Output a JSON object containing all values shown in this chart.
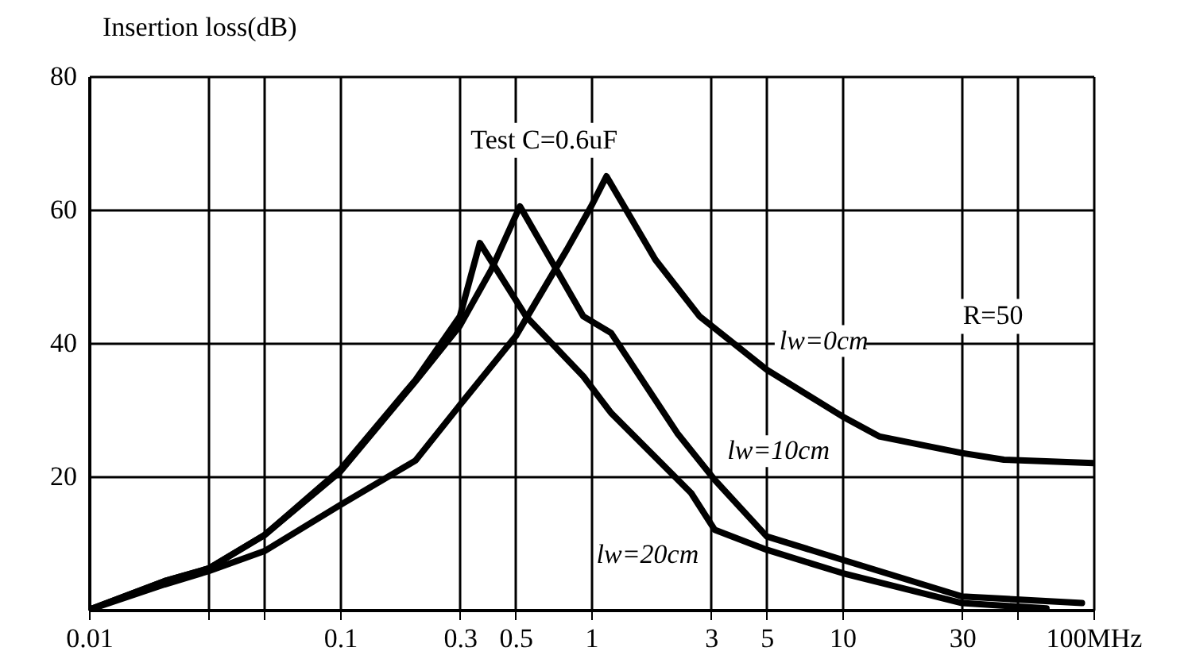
{
  "chart_data": {
    "type": "line",
    "ylabel": "Insertion loss(dB)",
    "annotations": [
      "Test C=0.6uF",
      "R=50"
    ],
    "xlim": [
      0.01,
      100
    ],
    "ylim": [
      0,
      80
    ],
    "log": "x",
    "grid": true,
    "legend": false,
    "line_style": "solid",
    "xticks": [
      0.01,
      {
        "value": 0.03,
        "label": null
      },
      {
        "value": 0.05,
        "label": null
      },
      0.1,
      0.3,
      0.5,
      1,
      3,
      5,
      10,
      30,
      {
        "value": 50,
        "label": null
      },
      {
        "value": 100,
        "label": "100MHz"
      }
    ],
    "yticks": [
      {
        "value": 0,
        "label": null
      },
      20,
      40,
      60,
      80
    ],
    "series": [
      {
        "name": "lw=0cm",
        "color": "#000000",
        "x": [
          0.01,
          0.02,
          0.03,
          0.05,
          0.1,
          0.2,
          0.3,
          0.5,
          0.8,
          1,
          1.15,
          1.8,
          2.7,
          5,
          10,
          14,
          30,
          44,
          100
        ],
        "values": [
          0,
          3.8,
          5.8,
          8.8,
          15.7,
          22.4,
          30.7,
          41,
          54,
          60.5,
          65,
          52.5,
          44,
          36,
          29,
          26,
          23.5,
          22.5,
          22
        ]
      },
      {
        "name": "lw=10cm",
        "color": "#000000",
        "x": [
          0.01,
          0.02,
          0.03,
          0.05,
          0.1,
          0.2,
          0.3,
          0.4,
          0.52,
          0.93,
          1.2,
          2.2,
          3.1,
          5,
          10,
          30,
          90
        ],
        "values": [
          0,
          4.3,
          6.2,
          11.2,
          20.7,
          34.3,
          42.6,
          51,
          60.5,
          44,
          41.5,
          26.5,
          19.5,
          11,
          7.5,
          2,
          1
        ]
      },
      {
        "name": "lw=20cm",
        "color": "#000000",
        "x": [
          0.01,
          0.02,
          0.03,
          0.05,
          0.1,
          0.2,
          0.3,
          0.36,
          0.55,
          0.93,
          1.2,
          2.5,
          3.1,
          5,
          10,
          30,
          65
        ],
        "values": [
          0,
          4.3,
          6.2,
          11.2,
          21,
          34.5,
          44,
          55,
          44,
          35,
          29.5,
          17.5,
          12,
          9,
          5.5,
          1,
          0.2
        ]
      }
    ]
  }
}
